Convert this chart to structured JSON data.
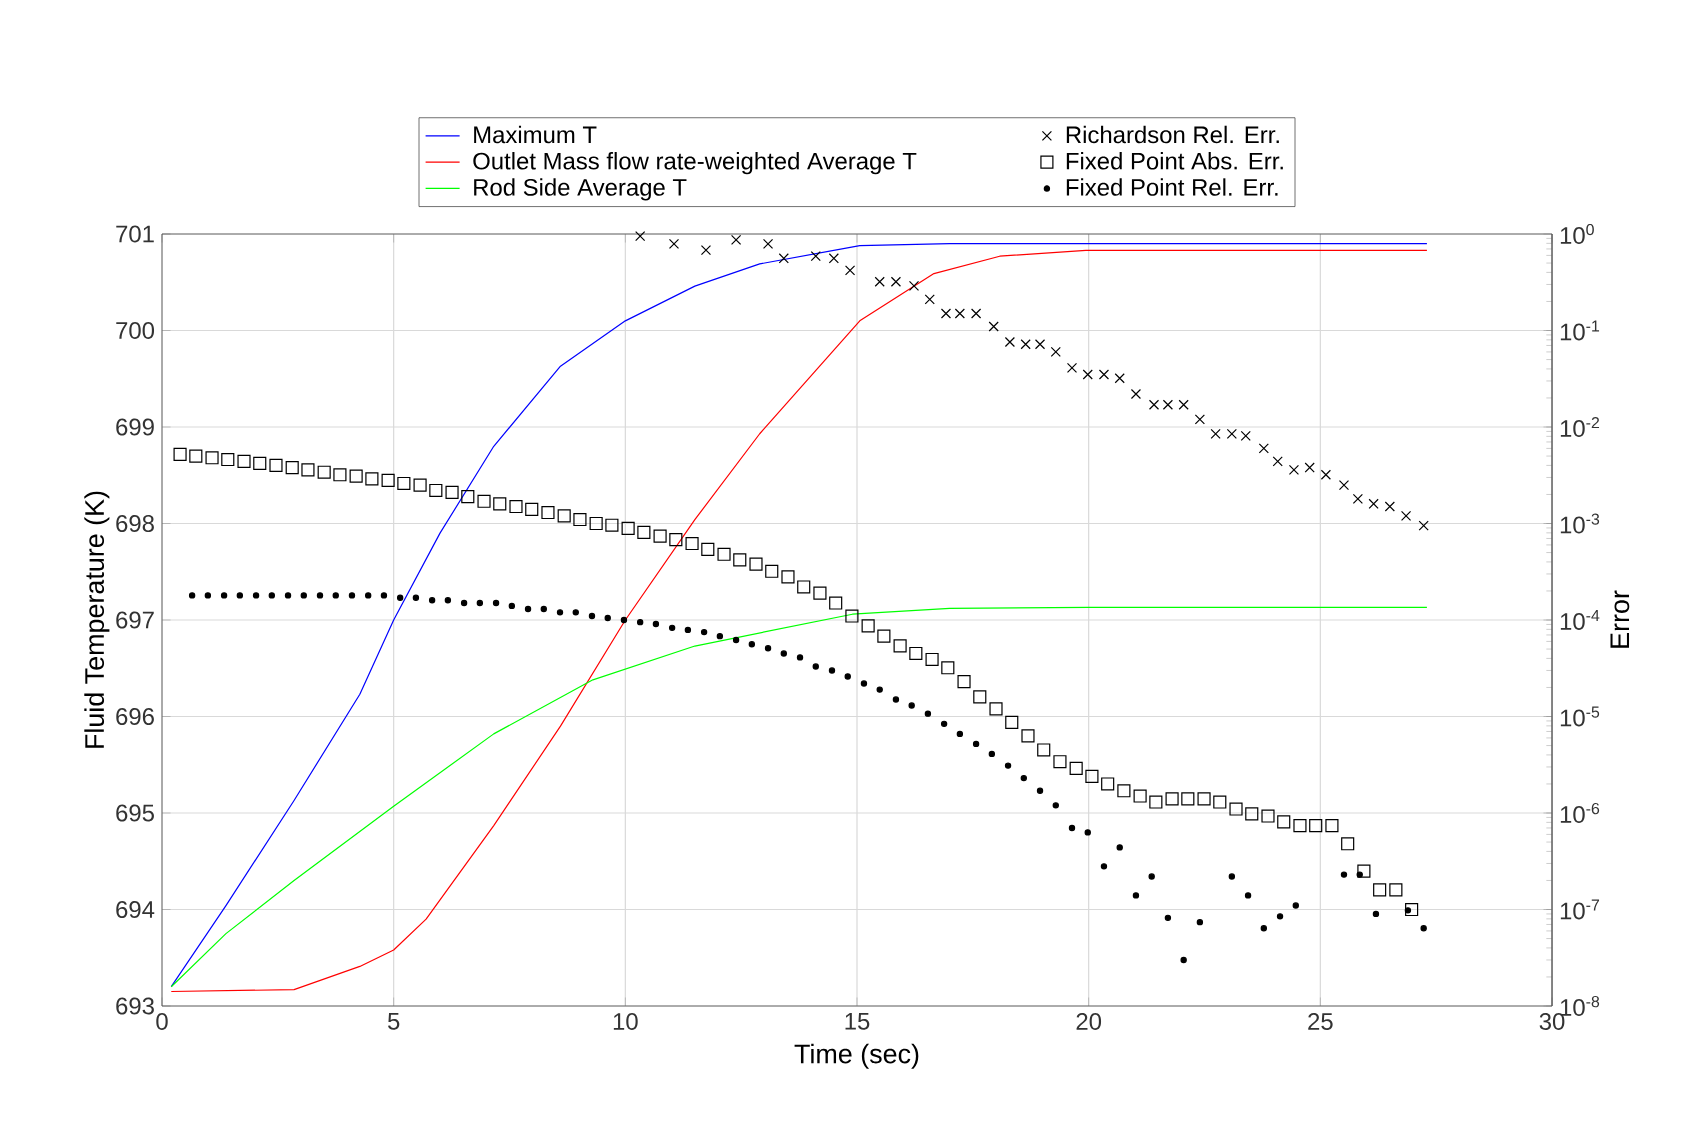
{
  "chart_data": {
    "type": "line",
    "xlabel": "Time (sec)",
    "ylabel": "Fluid Temperature (K)",
    "y2label": "Error",
    "xlim": [
      0,
      30
    ],
    "xticks": [
      0,
      5,
      10,
      15,
      20,
      25,
      30
    ],
    "ylim": [
      693,
      701
    ],
    "yticks": [
      693,
      694,
      695,
      696,
      697,
      698,
      699,
      700,
      701
    ],
    "y2lim": [
      1e-08,
      1
    ],
    "y2ticks": [
      {
        "value": 1e-08,
        "label": "10$^{-8}$"
      },
      {
        "value": 1e-07,
        "label": "10$^{-7}$"
      },
      {
        "value": 1e-06,
        "label": "10$^{-6}$"
      },
      {
        "value": 1e-05,
        "label": "10$^{-5}$"
      },
      {
        "value": 0.0001,
        "label": "10$^{-4}$"
      },
      {
        "value": 0.001,
        "label": "10$^{-3}$"
      },
      {
        "value": 0.01,
        "label": "10$^{-2}$"
      },
      {
        "value": 0.1,
        "label": "10$^{-1}$"
      },
      {
        "value": 1,
        "label": "10$^{0}$"
      }
    ],
    "log": "y2",
    "grid": true,
    "legend": "top",
    "series": [
      {
        "name": "Maximum T",
        "marker": "none",
        "color": "#0000ff",
        "x": [
          0.2,
          1.38,
          2.85,
          4.27,
          5.0,
          6.0,
          7.16,
          8.6,
          10.0,
          11.5,
          12.9,
          15.06,
          17.0,
          20.0,
          25.0,
          27.3
        ],
        "values": [
          693.2,
          694.04,
          695.13,
          696.23,
          697.0,
          697.9,
          698.8,
          699.63,
          700.1,
          700.46,
          700.69,
          700.88,
          700.9,
          700.9,
          700.9,
          700.9
        ]
      },
      {
        "name": "Outlet Mass flow rate-weighted Average T",
        "marker": "none",
        "color": "#ff0000",
        "x": [
          0.2,
          2.85,
          4.27,
          5.0,
          5.7,
          7.16,
          8.6,
          10.0,
          11.5,
          12.9,
          15.06,
          16.66,
          18.08,
          19.94,
          22.0,
          25.0,
          27.3
        ],
        "values": [
          693.15,
          693.17,
          693.41,
          693.58,
          693.9,
          694.87,
          695.9,
          697.0,
          698.04,
          698.93,
          700.1,
          700.59,
          700.77,
          700.83,
          700.83,
          700.83,
          700.83
        ]
      },
      {
        "name": "Rod Side Average T",
        "marker": "none",
        "color": "#00ff00",
        "x": [
          0.2,
          1.38,
          2.85,
          5.0,
          7.16,
          9.3,
          11.5,
          14.9,
          17.0,
          20.0,
          25.0,
          27.3
        ],
        "values": [
          693.2,
          693.75,
          694.3,
          695.07,
          695.82,
          696.38,
          696.73,
          697.06,
          697.12,
          697.13,
          697.13,
          697.13
        ]
      },
      {
        "name": "Richardson Rel. Err.",
        "type": "scatter",
        "marker": "cross",
        "axis": "y2",
        "color": "#000000",
        "x": [
          10.32,
          11.05,
          11.74,
          12.39,
          13.08,
          13.42,
          14.11,
          14.5,
          14.85,
          15.49,
          15.84,
          16.23,
          16.57,
          16.92,
          17.22,
          17.57,
          17.95,
          18.3,
          18.64,
          18.95,
          19.29,
          19.64,
          19.98,
          20.33,
          20.67,
          21.02,
          21.41,
          21.71,
          22.05,
          22.4,
          22.74,
          23.09,
          23.39,
          23.78,
          24.08,
          24.43,
          24.77,
          25.12,
          25.51,
          25.81,
          26.15,
          26.5,
          26.85,
          27.23
        ],
        "values": [
          0.95,
          0.79,
          0.68,
          0.87,
          0.79,
          0.56,
          0.59,
          0.56,
          0.42,
          0.32,
          0.32,
          0.29,
          0.21,
          0.15,
          0.15,
          0.15,
          0.11,
          0.076,
          0.072,
          0.072,
          0.06,
          0.041,
          0.035,
          0.035,
          0.032,
          0.022,
          0.017,
          0.017,
          0.017,
          0.012,
          0.0085,
          0.0085,
          0.0081,
          0.006,
          0.0044,
          0.0036,
          0.0038,
          0.0032,
          0.0025,
          0.0018,
          0.0016,
          0.0015,
          0.0012,
          0.00095
        ]
      },
      {
        "name": "Fixed Point Abs. Err.",
        "type": "scatter",
        "marker": "square",
        "axis": "y2",
        "color": "#000000",
        "x": [
          0.39,
          0.73,
          1.08,
          1.42,
          1.77,
          2.11,
          2.46,
          2.81,
          3.15,
          3.5,
          3.84,
          4.19,
          4.53,
          4.88,
          5.22,
          5.57,
          5.91,
          6.26,
          6.6,
          6.95,
          7.29,
          7.64,
          7.98,
          8.33,
          8.68,
          9.02,
          9.37,
          9.71,
          10.06,
          10.4,
          10.75,
          11.09,
          11.44,
          11.78,
          12.13,
          12.47,
          12.82,
          13.16,
          13.51,
          13.85,
          14.2,
          14.54,
          14.89,
          15.24,
          15.58,
          15.93,
          16.27,
          16.62,
          16.96,
          17.31,
          17.65,
          18.0,
          18.34,
          18.69,
          19.03,
          19.38,
          19.73,
          20.07,
          20.41,
          20.76,
          21.11,
          21.45,
          21.8,
          22.14,
          22.49,
          22.83,
          23.18,
          23.52,
          23.87,
          24.21,
          24.56,
          24.9,
          25.25,
          25.59,
          25.94,
          26.28,
          26.63,
          26.97
        ],
        "values": [
          0.0052,
          0.005,
          0.0048,
          0.0046,
          0.0044,
          0.0042,
          0.004,
          0.0038,
          0.0036,
          0.0034,
          0.0032,
          0.0031,
          0.0029,
          0.0028,
          0.0026,
          0.0025,
          0.0022,
          0.0021,
          0.0019,
          0.0017,
          0.0016,
          0.0015,
          0.0014,
          0.0013,
          0.0012,
          0.0011,
          0.001,
          0.00096,
          0.00089,
          0.00081,
          0.00074,
          0.00068,
          0.00062,
          0.00054,
          0.00048,
          0.00042,
          0.00038,
          0.00032,
          0.00028,
          0.00022,
          0.00019,
          0.00015,
          0.00011,
          8.7e-05,
          6.8e-05,
          5.4e-05,
          4.5e-05,
          3.9e-05,
          3.2e-05,
          2.3e-05,
          1.6e-05,
          1.2e-05,
          8.7e-06,
          6.3e-06,
          4.5e-06,
          3.4e-06,
          2.9e-06,
          2.4e-06,
          2e-06,
          1.7e-06,
          1.5e-06,
          1.3e-06,
          1.4e-06,
          1.4e-06,
          1.4e-06,
          1.3e-06,
          1.1e-06,
          9.8e-07,
          9.3e-07,
          8.1e-07,
          7.4e-07,
          7.4e-07,
          7.4e-07,
          4.8e-07,
          2.5e-07,
          1.6e-07,
          1.6e-07,
          1e-07
        ]
      },
      {
        "name": "Fixed Point Rel. Err.",
        "type": "scatter",
        "marker": "circle",
        "axis": "y2",
        "color": "#000000",
        "x": [
          0.65,
          0.99,
          1.34,
          1.68,
          2.03,
          2.37,
          2.72,
          3.06,
          3.41,
          3.75,
          4.1,
          4.45,
          4.79,
          5.14,
          5.48,
          5.83,
          6.17,
          6.52,
          6.86,
          7.21,
          7.55,
          7.9,
          8.24,
          8.59,
          8.93,
          9.28,
          9.62,
          9.97,
          10.32,
          10.66,
          11.01,
          11.35,
          11.7,
          12.04,
          12.39,
          12.73,
          13.08,
          13.42,
          13.77,
          14.11,
          14.46,
          14.8,
          15.15,
          15.49,
          15.84,
          16.18,
          16.53,
          16.88,
          17.22,
          17.57,
          17.91,
          18.26,
          18.6,
          18.95,
          19.29,
          19.64,
          19.98,
          20.33,
          20.67,
          21.02,
          21.36,
          21.71,
          22.05,
          22.4,
          23.09,
          23.44,
          23.78,
          24.13,
          24.47,
          25.51,
          25.85,
          26.2,
          26.89,
          27.23
        ],
        "values": [
          0.00018,
          0.00018,
          0.00018,
          0.00018,
          0.00018,
          0.00018,
          0.00018,
          0.00018,
          0.00018,
          0.00018,
          0.00018,
          0.00018,
          0.00018,
          0.00017,
          0.00017,
          0.00016,
          0.00016,
          0.00015,
          0.00015,
          0.00015,
          0.00014,
          0.00013,
          0.00013,
          0.00012,
          0.00012,
          0.00011,
          0.000105,
          0.0001,
          9.5e-05,
          9.1e-05,
          8.3e-05,
          7.9e-05,
          7.5e-05,
          6.8e-05,
          6.2e-05,
          5.6e-05,
          5.1e-05,
          4.5e-05,
          4.1e-05,
          3.3e-05,
          3e-05,
          2.6e-05,
          2.2e-05,
          1.9e-05,
          1.5e-05,
          1.3e-05,
          1.07e-05,
          8.4e-06,
          6.6e-06,
          5.2e-06,
          4.1e-06,
          3.1e-06,
          2.3e-06,
          1.7e-06,
          1.2e-06,
          7e-07,
          6.3e-07,
          2.8e-07,
          4.4e-07,
          1.4e-07,
          2.2e-07,
          8.2e-08,
          3e-08,
          7.4e-08,
          2.2e-07,
          1.4e-07,
          6.4e-08,
          8.5e-08,
          1.1e-07,
          2.3e-07,
          2.3e-07,
          9e-08,
          9.8e-08,
          6.4e-08
        ]
      }
    ]
  }
}
